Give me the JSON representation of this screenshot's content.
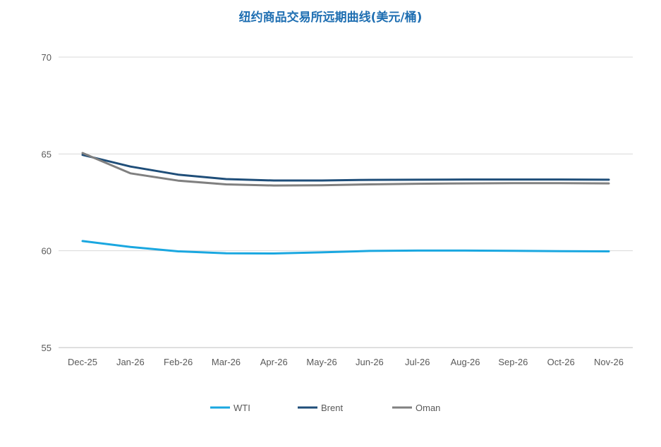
{
  "chart_data": {
    "type": "line",
    "title": "纽约商品交易所远期曲线(美元/桶)",
    "xlabel": "",
    "ylabel": "",
    "ylim": [
      55,
      70
    ],
    "yticks": [
      55,
      60,
      65,
      70
    ],
    "grid": true,
    "legend_position": "bottom",
    "categories": [
      "Dec-25",
      "Jan-26",
      "Feb-26",
      "Mar-26",
      "Apr-26",
      "May-26",
      "Jun-26",
      "Jul-26",
      "Aug-26",
      "Sep-26",
      "Oct-26",
      "Nov-26"
    ],
    "series": [
      {
        "name": "WTI",
        "color": "#1aa7e0",
        "values": [
          60.5,
          60.2,
          59.97,
          59.87,
          59.86,
          59.92,
          59.99,
          60.01,
          60.01,
          60.0,
          59.98,
          59.97
        ]
      },
      {
        "name": "Brent",
        "color": "#1f4e79",
        "values": [
          64.95,
          64.35,
          63.93,
          63.7,
          63.63,
          63.63,
          63.66,
          63.67,
          63.68,
          63.68,
          63.68,
          63.67
        ]
      },
      {
        "name": "Oman",
        "color": "#808080",
        "values": [
          65.05,
          64.0,
          63.62,
          63.43,
          63.37,
          63.38,
          63.43,
          63.46,
          63.48,
          63.49,
          63.49,
          63.48
        ]
      }
    ]
  }
}
